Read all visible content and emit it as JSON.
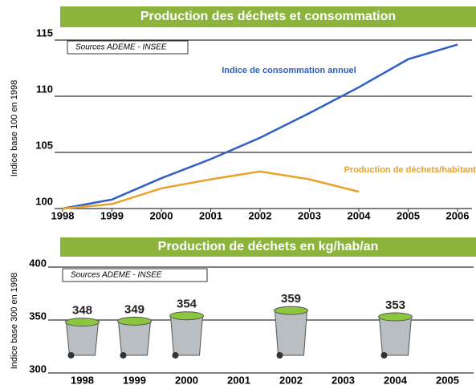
{
  "chart_data": [
    {
      "type": "line",
      "title": "Production des déchets et consommation",
      "annotation": "Sources ADEME - INSEE",
      "y_label": "Indice base 100 en 1998",
      "x": [
        1998,
        1999,
        2000,
        2001,
        2002,
        2003,
        2004,
        2005,
        2006
      ],
      "xlim": [
        1998,
        2006
      ],
      "xticks": [
        1998,
        1999,
        2000,
        2001,
        2002,
        2003,
        2004,
        2005,
        2006
      ],
      "ylim": [
        100,
        115
      ],
      "yticks": [
        100,
        105,
        110,
        115
      ],
      "grid": true,
      "series": [
        {
          "name": "Indice de consommation annuel",
          "color": "#2f5fc4",
          "values": [
            100,
            100.8,
            102.7,
            104.4,
            106.3,
            108.5,
            110.8,
            113.3,
            114.6
          ]
        },
        {
          "name": "Production de déchets/habitant",
          "color": "#e9a22b",
          "values": [
            100,
            100.4,
            101.8,
            102.6,
            103.3,
            102.6,
            101.5,
            null,
            null
          ]
        }
      ]
    },
    {
      "type": "pictograph",
      "title": "Production de déchets en kg/hab/an",
      "annotation": "Sources ADEME - INSEE",
      "y_label": "Indice base 300 en 1998",
      "categories": [
        "1998",
        "1999",
        "2000",
        "2001",
        "2002",
        "2003",
        "2004",
        "2005"
      ],
      "values": [
        348,
        349,
        354,
        null,
        359,
        null,
        353,
        null
      ],
      "color": "#b9bec3",
      "ylim": [
        300,
        400
      ],
      "yticks": [
        300,
        350,
        400
      ],
      "grid": true
    }
  ]
}
